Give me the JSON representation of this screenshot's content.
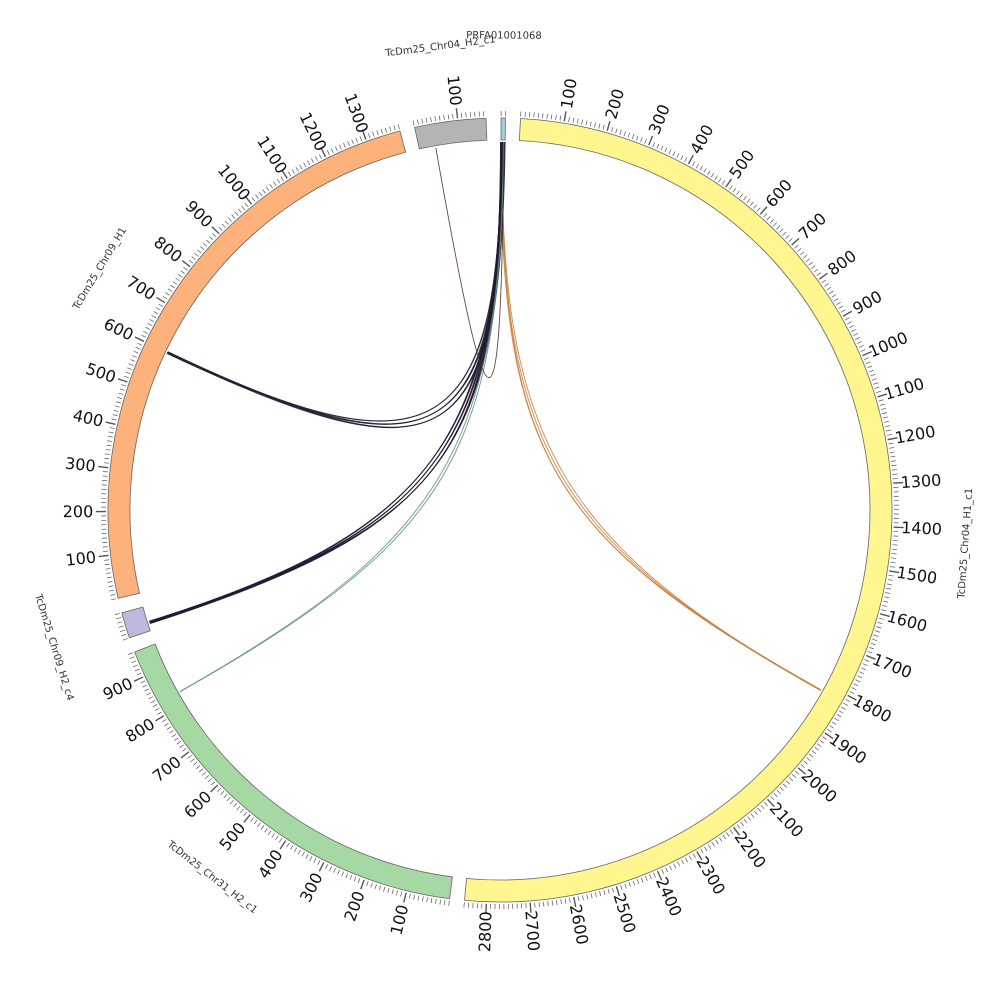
{
  "chart_data": {
    "type": "chord",
    "segments": [
      {
        "name": "TcDm25_Chr04_H1_c1",
        "length": 2850,
        "color": "#fff68f",
        "tick_major": 100,
        "tick_minor": 10,
        "label_every": 100
      },
      {
        "name": "TcDm25_Chr31_H2_c1",
        "length": 960,
        "color": "#a6d8a4",
        "tick_major": 100,
        "tick_minor": 10,
        "label_every": 100
      },
      {
        "name": "TcDm25_Chr09_H2_c4",
        "length": 60,
        "color": "#c0b8dc",
        "tick_major": 100,
        "tick_minor": 10,
        "label_every": 100
      },
      {
        "name": "TcDm25_Chr09_H1",
        "length": 1380,
        "color": "#fdb27b",
        "tick_major": 100,
        "tick_minor": 10,
        "label_every": 100
      },
      {
        "name": "TcDm25_Chr04_H2_c1",
        "length": 165,
        "color": "#b4b4b4",
        "tick_major": 100,
        "tick_minor": 10,
        "label_every": 100
      },
      {
        "name": "PRFA01001068",
        "length": 10,
        "color": "#a8cfe0",
        "tick_major": 100,
        "tick_minor": 10,
        "label_every": 100
      }
    ],
    "links": [
      {
        "source": "PRFA01001068",
        "spos": 2,
        "target": "TcDm25_Chr04_H1_c1",
        "tpos": 1820,
        "color": "#c97d3a",
        "count": 4
      },
      {
        "source": "PRFA01001068",
        "spos": 4,
        "target": "TcDm25_Chr09_H1",
        "tpos": 600,
        "color": "#222233",
        "count": 8
      },
      {
        "source": "PRFA01001068",
        "spos": 5,
        "target": "TcDm25_Chr09_H2_c4",
        "tpos": 20,
        "color": "#221a33",
        "count": 10
      },
      {
        "source": "PRFA01001068",
        "spos": 7,
        "target": "TcDm25_Chr31_H2_c1",
        "tpos": 830,
        "color": "#5a8f7a",
        "count": 2
      },
      {
        "source": "PRFA01001068",
        "spos": 8,
        "target": "TcDm25_Chr04_H2_c1",
        "tpos": 40,
        "color": "#5a3030",
        "count": 1
      }
    ]
  }
}
